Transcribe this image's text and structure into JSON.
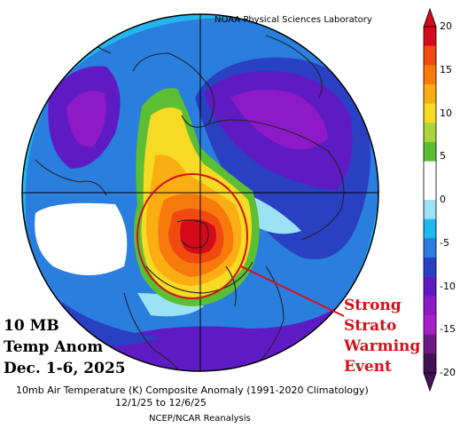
{
  "header": {
    "lab": "NOAA Physical Sciences Laboratory"
  },
  "panel": {
    "line1": "10 MB",
    "line2": "Temp Anom",
    "line3": "Dec. 1-6, 2025"
  },
  "annotation": {
    "line1": "Strong",
    "line2": "Strato",
    "line3": "Warming",
    "line4": "Event",
    "color": "#d1111a"
  },
  "caption": {
    "title": "10mb Air Temperature (K) Composite Anomaly (1991-2020 Climatology)",
    "dates": "12/1/25 to 12/6/25",
    "source": "NCEP/NCAR Reanalysis"
  },
  "colorbar": {
    "labels": [
      "20",
      "15",
      "10",
      "5",
      "0",
      "-5",
      "-10",
      "-15",
      "-20"
    ],
    "colors": [
      "#d40a1a",
      "#f04a10",
      "#f87a0c",
      "#fbae14",
      "#f6da23",
      "#a9d53b",
      "#5cbf33",
      "#ffffff",
      "#ffffff",
      "#9be3f4",
      "#1fb9ef",
      "#2a7ede",
      "#2a40c2",
      "#5e1bc4",
      "#8d19c7",
      "#a81ec8",
      "#6b1a83",
      "#421256"
    ]
  }
}
